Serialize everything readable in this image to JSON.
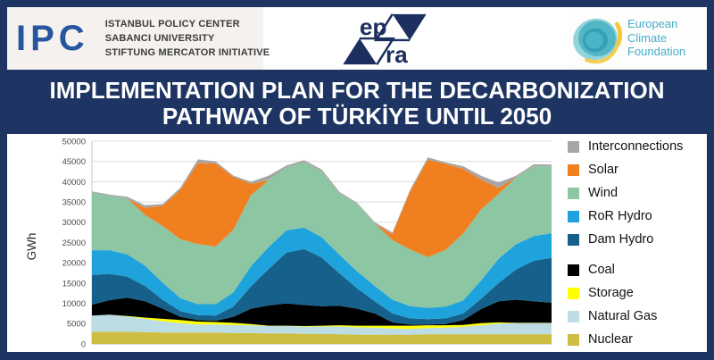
{
  "header": {
    "ipc": {
      "abbr": "IPC",
      "lines": [
        "ISTANBUL POLICY CENTER",
        "SABANCI UNIVERSITY",
        "STIFTUNG MERCATOR INITIATIVE"
      ]
    },
    "epra": {
      "top": "ep",
      "bottom": "ra"
    },
    "ecf": {
      "lines": [
        "European",
        "Climate",
        "Foundation"
      ]
    }
  },
  "banner": {
    "line1": "IMPLEMENTATION PLAN FOR THE DECARBONIZATION",
    "line2": "PATHWAY OF TÜRKİYE UNTIL 2050"
  },
  "colors": {
    "background_navy": "#1e3563",
    "ipc_blue": "#25569f",
    "ipc_red": "#e5173f",
    "epra_navy": "#1c2f5e",
    "ecf_teal": "#46aec9",
    "grid_gray": "#dcdcdc"
  },
  "chart_data": {
    "type": "area",
    "stacked": true,
    "title": "",
    "xlabel": "",
    "ylabel": "GWh",
    "ylim": [
      0,
      50000
    ],
    "y_ticks": [
      0,
      5000,
      10000,
      15000,
      20000,
      25000,
      30000,
      35000,
      40000,
      45000,
      50000
    ],
    "grid": true,
    "x_axis_labels_visible": false,
    "legend_position": "right",
    "legend_order_top_to_bottom": [
      "Interconnections",
      "Solar",
      "Wind",
      "RoR Hydro",
      "Dam Hydro",
      "Coal",
      "Storage",
      "Natural Gas",
      "Nuclear"
    ],
    "series_bottom_to_top": [
      {
        "name": "Nuclear",
        "color": "#cdbe42",
        "values": [
          3000,
          3000,
          3000,
          2900,
          2800,
          2800,
          2800,
          2800,
          2700,
          2700,
          2600,
          2600,
          2500,
          2500,
          2400,
          2300,
          2300,
          2300,
          2300,
          2400,
          2400,
          2400,
          2400,
          2400,
          2400,
          2400,
          2400
        ]
      },
      {
        "name": "Natural Gas",
        "color": "#bcdde4",
        "values": [
          4000,
          4200,
          3800,
          3300,
          2800,
          2300,
          2000,
          2000,
          2000,
          1900,
          1800,
          1800,
          1800,
          1800,
          1900,
          1800,
          1700,
          1500,
          1400,
          1500,
          1600,
          1800,
          2200,
          2600,
          2700,
          2700,
          2700
        ]
      },
      {
        "name": "Storage",
        "color": "#ffff00",
        "values": [
          0,
          0,
          100,
          300,
          600,
          800,
          700,
          600,
          500,
          300,
          100,
          100,
          100,
          200,
          300,
          400,
          500,
          700,
          800,
          700,
          600,
          500,
          500,
          300,
          100,
          100,
          100
        ]
      },
      {
        "name": "Coal",
        "color": "#000000",
        "values": [
          2700,
          3600,
          4500,
          4000,
          2500,
          800,
          400,
          300,
          1500,
          3800,
          5000,
          5500,
          5200,
          4800,
          4800,
          4200,
          3000,
          800,
          300,
          200,
          300,
          1200,
          3500,
          5200,
          5700,
          5300,
          5000
        ]
      },
      {
        "name": "Dam Hydro",
        "color": "#16618c",
        "values": [
          7300,
          6500,
          5200,
          3800,
          2200,
          1400,
          1200,
          1300,
          2500,
          5500,
          9000,
          12500,
          13800,
          12000,
          8000,
          5000,
          3000,
          2200,
          1500,
          1300,
          1400,
          1600,
          2500,
          4500,
          7500,
          10000,
          11000
        ]
      },
      {
        "name": "RoR Hydro",
        "color": "#1fa3dc",
        "values": [
          6100,
          5800,
          5500,
          5000,
          4200,
          3200,
          2700,
          2800,
          3500,
          5000,
          5400,
          5500,
          5300,
          5000,
          4600,
          4200,
          3800,
          3400,
          3000,
          2800,
          2900,
          3200,
          4500,
          6000,
          6200,
          6100,
          6100
        ]
      },
      {
        "name": "Wind",
        "color": "#8dc6a2",
        "values": [
          14200,
          13400,
          13800,
          12500,
          14000,
          14500,
          14800,
          14200,
          15500,
          17500,
          16500,
          15500,
          16200,
          16200,
          15100,
          16600,
          15400,
          14700,
          14000,
          12500,
          14000,
          16500,
          17500,
          16000,
          16500,
          17200,
          16500
        ]
      },
      {
        "name": "Solar",
        "color": "#f0801f",
        "values": [
          0,
          0,
          0,
          1800,
          5000,
          12200,
          20000,
          20500,
          13000,
          2800,
          0,
          0,
          0,
          0,
          0,
          0,
          0,
          1500,
          14300,
          24000,
          21200,
          16000,
          7500,
          1500,
          0,
          0,
          0
        ]
      },
      {
        "name": "Interconnections",
        "color": "#a6a6a6",
        "values": [
          300,
          300,
          400,
          600,
          400,
          500,
          900,
          500,
          300,
          500,
          1100,
          500,
          400,
          500,
          400,
          300,
          300,
          400,
          400,
          600,
          400,
          600,
          900,
          1300,
          400,
          500,
          400
        ]
      }
    ]
  }
}
